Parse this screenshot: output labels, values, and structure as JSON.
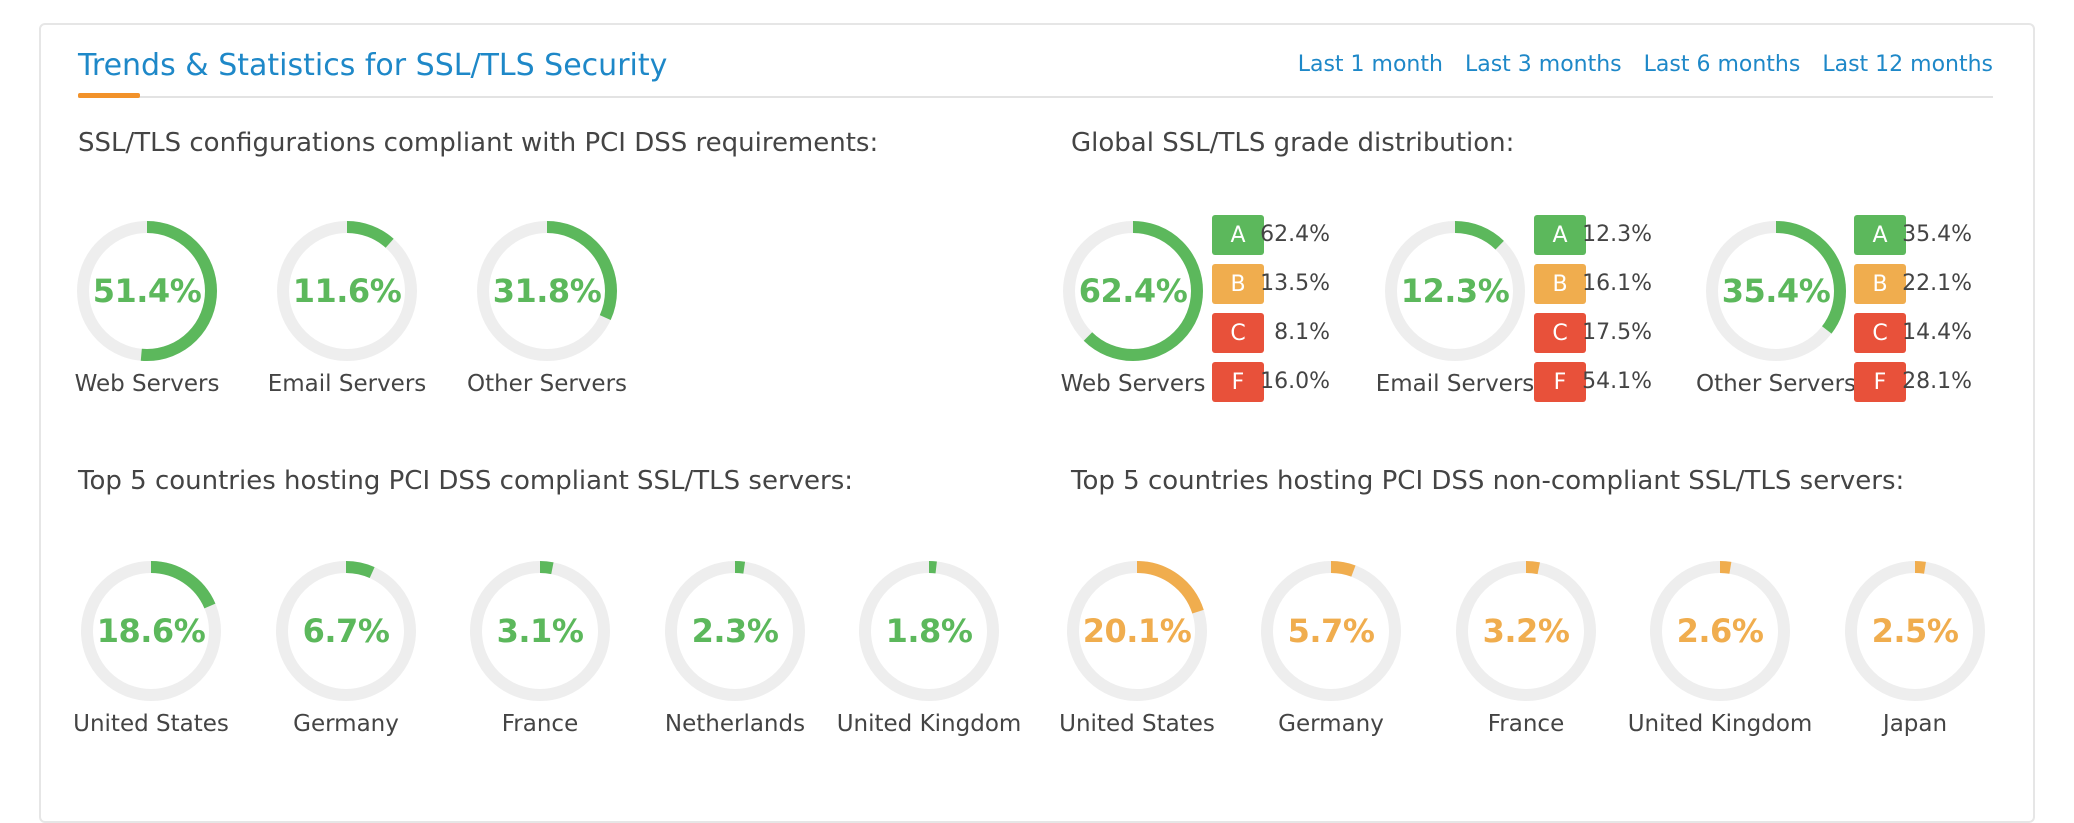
{
  "header": {
    "title": "Trends & Statistics for SSL/TLS Security",
    "periods": [
      "Last 1 month",
      "Last 3 months",
      "Last 6 months",
      "Last 12 months"
    ]
  },
  "colors": {
    "green": "#5cb85c",
    "orange": "#f0ad4e",
    "red": "#e8513a",
    "track": "#eeeeee",
    "link": "#1e88c8"
  },
  "pci": {
    "title": "SSL/TLS configurations compliant with PCI DSS requirements:",
    "items": [
      {
        "label": "Web Servers",
        "pct": "51.4%",
        "value": 51.4
      },
      {
        "label": "Email Servers",
        "pct": "11.6%",
        "value": 11.6
      },
      {
        "label": "Other Servers",
        "pct": "31.8%",
        "value": 31.8
      }
    ]
  },
  "grades": {
    "title": "Global SSL/TLS grade distribution:",
    "items": [
      {
        "label": "Web Servers",
        "pct": "62.4%",
        "value": 62.4,
        "dist": [
          {
            "g": "A",
            "v": "62.4%"
          },
          {
            "g": "B",
            "v": "13.5%"
          },
          {
            "g": "C",
            "v": "8.1%"
          },
          {
            "g": "F",
            "v": "16.0%"
          }
        ]
      },
      {
        "label": "Email Servers",
        "pct": "12.3%",
        "value": 12.3,
        "dist": [
          {
            "g": "A",
            "v": "12.3%"
          },
          {
            "g": "B",
            "v": "16.1%"
          },
          {
            "g": "C",
            "v": "17.5%"
          },
          {
            "g": "F",
            "v": "54.1%"
          }
        ]
      },
      {
        "label": "Other Servers",
        "pct": "35.4%",
        "value": 35.4,
        "dist": [
          {
            "g": "A",
            "v": "35.4%"
          },
          {
            "g": "B",
            "v": "22.1%"
          },
          {
            "g": "C",
            "v": "14.4%"
          },
          {
            "g": "F",
            "v": "28.1%"
          }
        ]
      }
    ]
  },
  "compliant": {
    "title": "Top 5 countries hosting PCI DSS compliant SSL/TLS servers:",
    "items": [
      {
        "label": "United States",
        "pct": "18.6%",
        "value": 18.6
      },
      {
        "label": "Germany",
        "pct": "6.7%",
        "value": 6.7
      },
      {
        "label": "France",
        "pct": "3.1%",
        "value": 3.1
      },
      {
        "label": "Netherlands",
        "pct": "2.3%",
        "value": 2.3
      },
      {
        "label": "United Kingdom",
        "pct": "1.8%",
        "value": 1.8
      }
    ]
  },
  "noncompliant": {
    "title": "Top 5 countries hosting PCI DSS non-compliant SSL/TLS servers:",
    "items": [
      {
        "label": "United States",
        "pct": "20.1%",
        "value": 20.1
      },
      {
        "label": "Germany",
        "pct": "5.7%",
        "value": 5.7
      },
      {
        "label": "France",
        "pct": "3.2%",
        "value": 3.2
      },
      {
        "label": "United Kingdom",
        "pct": "2.6%",
        "value": 2.6
      },
      {
        "label": "Japan",
        "pct": "2.5%",
        "value": 2.5
      }
    ]
  }
}
